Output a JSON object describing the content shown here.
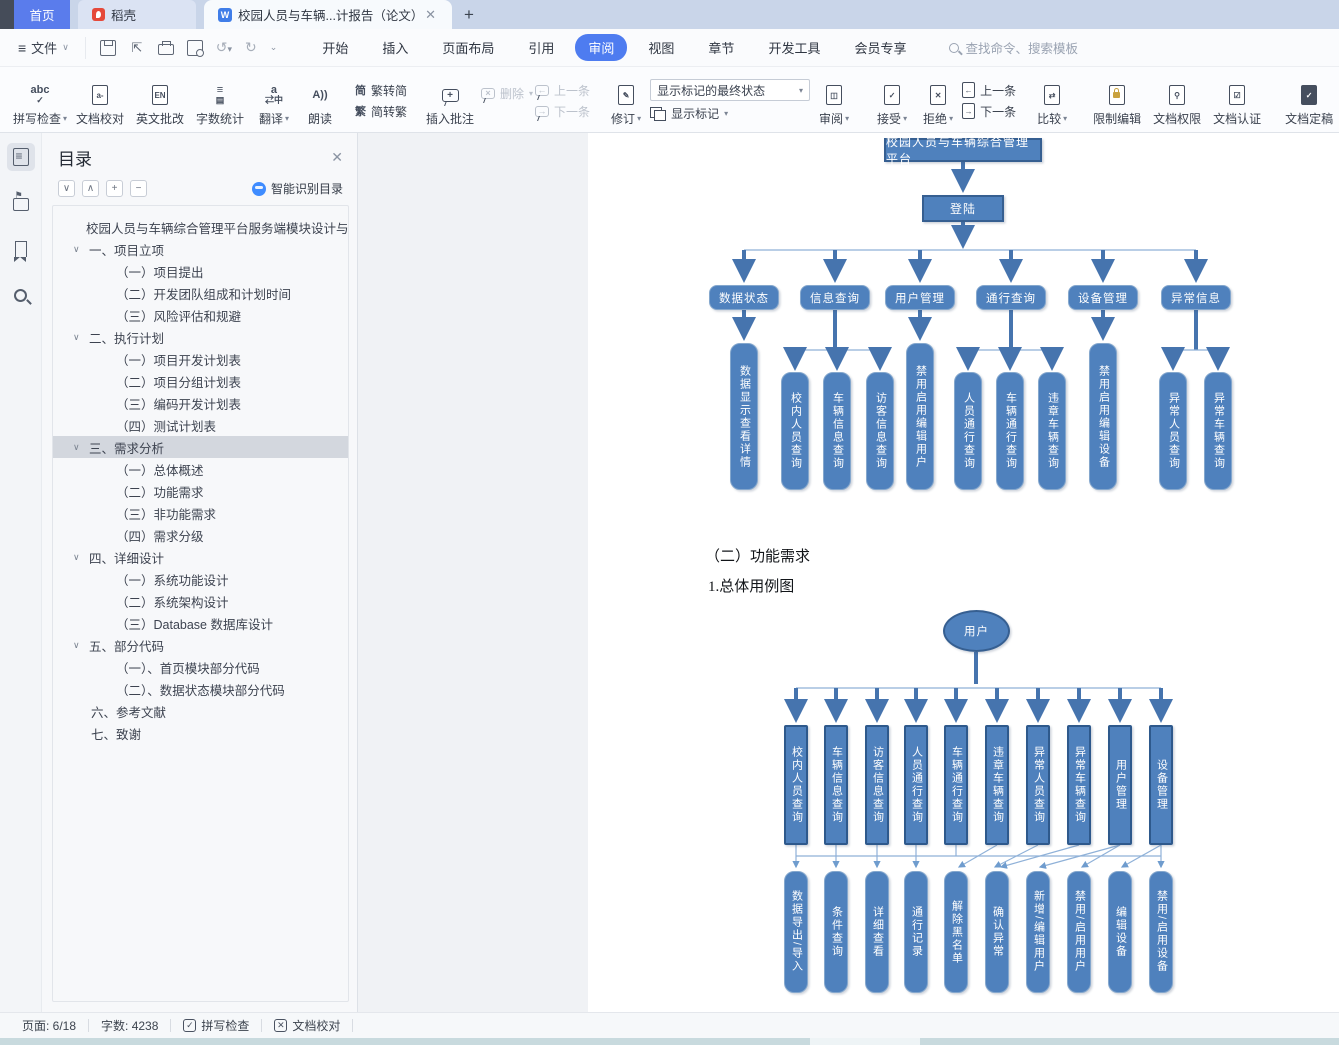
{
  "window": {
    "tabs": [
      {
        "label": "首页",
        "type": "home"
      },
      {
        "label": "稻壳",
        "type": "docer"
      },
      {
        "label": "校园人员与车辆...计报告（论文）",
        "type": "document",
        "active": true
      }
    ],
    "new_tab_label": "+"
  },
  "menubar": {
    "file_label": "文件",
    "items": [
      "开始",
      "插入",
      "页面布局",
      "引用",
      "审阅",
      "视图",
      "章节",
      "开发工具",
      "会员专享"
    ],
    "active_item": "审阅",
    "search_placeholder": "查找命令、搜索模板"
  },
  "ribbon": {
    "spellcheck": "拼写检查",
    "proofread": "文档校对",
    "english_correct": "英文批改",
    "word_count": "字数统计",
    "translate": "翻译",
    "read_aloud": "朗读",
    "trad_to_simp": "繁转简",
    "simp_to_trad": "简转繁",
    "insert_comment": "插入批注",
    "delete_comment": "删除",
    "prev_comment": "上一条",
    "next_comment": "下一条",
    "track_changes": "修订",
    "markup_state_value": "显示标记的最终状态",
    "show_markup": "显示标记",
    "review_pane": "审阅",
    "accept": "接受",
    "reject": "拒绝",
    "prev_change": "上一条",
    "next_change": "下一条",
    "compare": "比较",
    "restrict_edit": "限制编辑",
    "doc_permission": "文档权限",
    "doc_auth": "文档认证",
    "doc_final": "文档定稿"
  },
  "toc_panel": {
    "title": "目录",
    "smart_recognize": "智能识别目录",
    "items": [
      {
        "label": "校园人员与车辆综合管理平台服务端模块设计与 ...",
        "level": 0,
        "chevron": false,
        "selected": false
      },
      {
        "label": "一、项目立项",
        "level": 1,
        "chevron": true,
        "selected": false
      },
      {
        "label": "（一）项目提出",
        "level": 2,
        "chevron": false,
        "selected": false
      },
      {
        "label": "（二）开发团队组成和计划时间",
        "level": 2,
        "chevron": false,
        "selected": false
      },
      {
        "label": "（三）风险评估和规避",
        "level": 2,
        "chevron": false,
        "selected": false
      },
      {
        "label": "二、执行计划",
        "level": 1,
        "chevron": true,
        "selected": false
      },
      {
        "label": "（一）项目开发计划表",
        "level": 2,
        "chevron": false,
        "selected": false
      },
      {
        "label": "（二）项目分组计划表",
        "level": 2,
        "chevron": false,
        "selected": false
      },
      {
        "label": "（三）编码开发计划表",
        "level": 2,
        "chevron": false,
        "selected": false
      },
      {
        "label": "（四）测试计划表",
        "level": 2,
        "chevron": false,
        "selected": false
      },
      {
        "label": "三、需求分析",
        "level": 1,
        "chevron": true,
        "selected": true
      },
      {
        "label": "（一）总体概述",
        "level": 2,
        "chevron": false,
        "selected": false
      },
      {
        "label": "（二）功能需求",
        "level": 2,
        "chevron": false,
        "selected": false
      },
      {
        "label": "（三）非功能需求",
        "level": 2,
        "chevron": false,
        "selected": false
      },
      {
        "label": "（四）需求分级",
        "level": 2,
        "chevron": false,
        "selected": false
      },
      {
        "label": "四、详细设计",
        "level": 1,
        "chevron": true,
        "selected": false
      },
      {
        "label": "（一）系统功能设计",
        "level": 2,
        "chevron": false,
        "selected": false
      },
      {
        "label": "（二）系统架构设计",
        "level": 2,
        "chevron": false,
        "selected": false
      },
      {
        "label": "（三）Database 数据库设计",
        "level": 2,
        "chevron": false,
        "selected": false
      },
      {
        "label": "五、部分代码",
        "level": 1,
        "chevron": true,
        "selected": false
      },
      {
        "label": "（一）、首页模块部分代码",
        "level": 2,
        "chevron": false,
        "selected": false
      },
      {
        "label": "（二）、数据状态模块部分代码",
        "level": 2,
        "chevron": false,
        "selected": false
      },
      {
        "label": "六、参考文献",
        "level": 1,
        "chevron": false,
        "selected": false
      },
      {
        "label": "七、致谢",
        "level": 1,
        "chevron": false,
        "selected": false
      }
    ]
  },
  "document": {
    "section_heading": "（二）功能需求",
    "sub_heading": "1.总体用例图",
    "diagram1": {
      "root": "校园人员与车辆综合管理平台",
      "login": "登陆",
      "groups": [
        {
          "label": "数据状态",
          "children": [
            "数据显示查看详情"
          ]
        },
        {
          "label": "信息查询",
          "children": [
            "校内人员查询",
            "车辆信息查询",
            "访客信息查询"
          ]
        },
        {
          "label": "用户管理",
          "children": [
            "禁用启用编辑用户"
          ]
        },
        {
          "label": "通行查询",
          "children": [
            "人员通行查询",
            "车辆通行查询",
            "违章车辆查询"
          ]
        },
        {
          "label": "设备管理",
          "children": [
            "禁用启用编辑设备"
          ]
        },
        {
          "label": "异常信息",
          "children": [
            "异常人员查询",
            "异常车辆查询"
          ]
        }
      ]
    },
    "diagram2": {
      "actor": "用户",
      "usecases": [
        "校内人员查询",
        "车辆信息查询",
        "访客信息查询",
        "人员通行查询",
        "车辆通行查询",
        "违章车辆查询",
        "异常人员查询",
        "异常车辆查询",
        "用户管理",
        "设备管理"
      ],
      "actions": [
        "数据导出/导入",
        "条件查询",
        "详细查看",
        "通行记录",
        "解除黑名单",
        "确认异常",
        "新增/编辑用户",
        "禁用/启用用户",
        "编辑设备",
        "禁用/启用设备"
      ]
    }
  },
  "statusbar": {
    "page_indicator": "页面: 6/18",
    "word_count": "字数: 4238",
    "spellcheck": "拼写检查",
    "proofread": "文档校对"
  },
  "colors": {
    "accent": "#4e7cf0",
    "home_tab_blue": "#5a7cec",
    "diagram_fill": "#4f81bd",
    "diagram_border": "#365f91",
    "thin_line": "#8fb1d8"
  }
}
